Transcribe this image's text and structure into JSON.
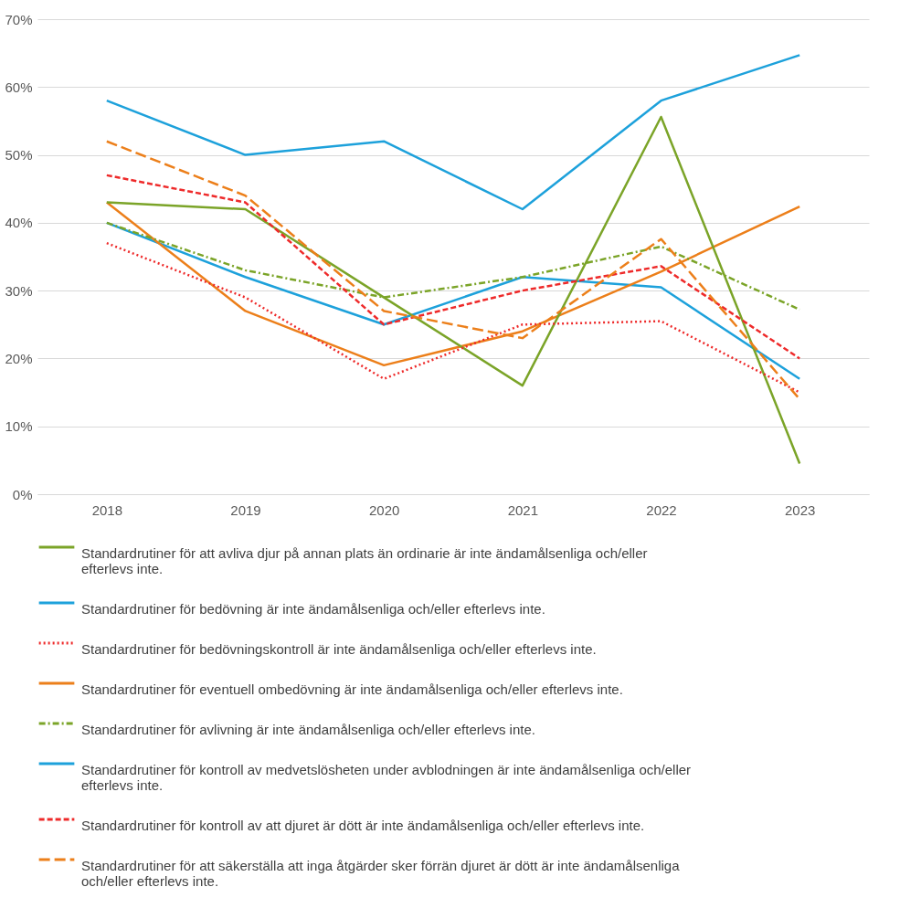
{
  "chart_data": {
    "type": "line",
    "categories": [
      "2018",
      "2019",
      "2020",
      "2021",
      "2022",
      "2023"
    ],
    "ylim": [
      0,
      70
    ],
    "yticks": [
      {
        "value": 0,
        "label": "0%"
      },
      {
        "value": 10,
        "label": "10%"
      },
      {
        "value": 20,
        "label": "20%"
      },
      {
        "value": 30,
        "label": "30%"
      },
      {
        "value": 40,
        "label": "40%"
      },
      {
        "value": 50,
        "label": "50%"
      },
      {
        "value": 60,
        "label": "60%"
      },
      {
        "value": 70,
        "label": "70%"
      }
    ],
    "grid": "y",
    "legend": "bottom",
    "marker": "none",
    "series": [
      {
        "name": "Standardrutiner för att avliva djur på annan plats än ordinarie är inte ändamålsenliga och/eller efterlevs inte.",
        "color": "#7ba428",
        "line_style": "solid",
        "values": [
          43,
          42,
          29,
          16,
          55.6,
          4.5
        ]
      },
      {
        "name": "Standardrutiner för bedövning är inte ändamålsenliga och/eller efterlevs inte.",
        "color": "#1da1db",
        "line_style": "solid",
        "values": [
          58,
          50,
          52,
          42,
          58,
          64.7
        ]
      },
      {
        "name": "Standardrutiner för bedövningskontroll är inte ändamålsenliga och/eller efterlevs inte.",
        "color": "#ee2a2a",
        "line_style": "dotted",
        "values": [
          37,
          29,
          17,
          25,
          25.5,
          15
        ]
      },
      {
        "name": "Standardrutiner för eventuell ombedövning är inte ändamålsenliga och/eller efterlevs inte.",
        "color": "#ec7f1a",
        "line_style": "solid",
        "values": [
          43,
          27,
          19,
          24,
          32.8,
          42.4
        ]
      },
      {
        "name": "Standardrutiner för avlivning är inte ändamålsenliga och/eller efterlevs inte.",
        "color": "#7ba428",
        "line_style": "dashdot",
        "values": [
          40,
          33,
          29,
          32,
          36.5,
          27.2
        ]
      },
      {
        "name": "Standardrutiner för kontroll av medvetslösheten under avblodningen är inte ändamålsenliga och/eller efterlevs inte.",
        "color": "#1da1db",
        "line_style": "solid",
        "values": [
          40,
          32,
          25,
          32,
          30.5,
          17
        ]
      },
      {
        "name": "Standardrutiner för kontroll av att djuret är dött är inte ändamålsenliga och/eller efterlevs inte.",
        "color": "#ee2a2a",
        "line_style": "dashed",
        "values": [
          47,
          43,
          25,
          30,
          33.6,
          20
        ]
      },
      {
        "name": "Standardrutiner för att säkerställa att inga åtgärder sker förrän djuret är dött är inte ändamålsenliga och/eller efterlevs inte.",
        "color": "#ec7f1a",
        "line_style": "longdash",
        "values": [
          52,
          44,
          27,
          23,
          37.6,
          14
        ]
      }
    ]
  }
}
